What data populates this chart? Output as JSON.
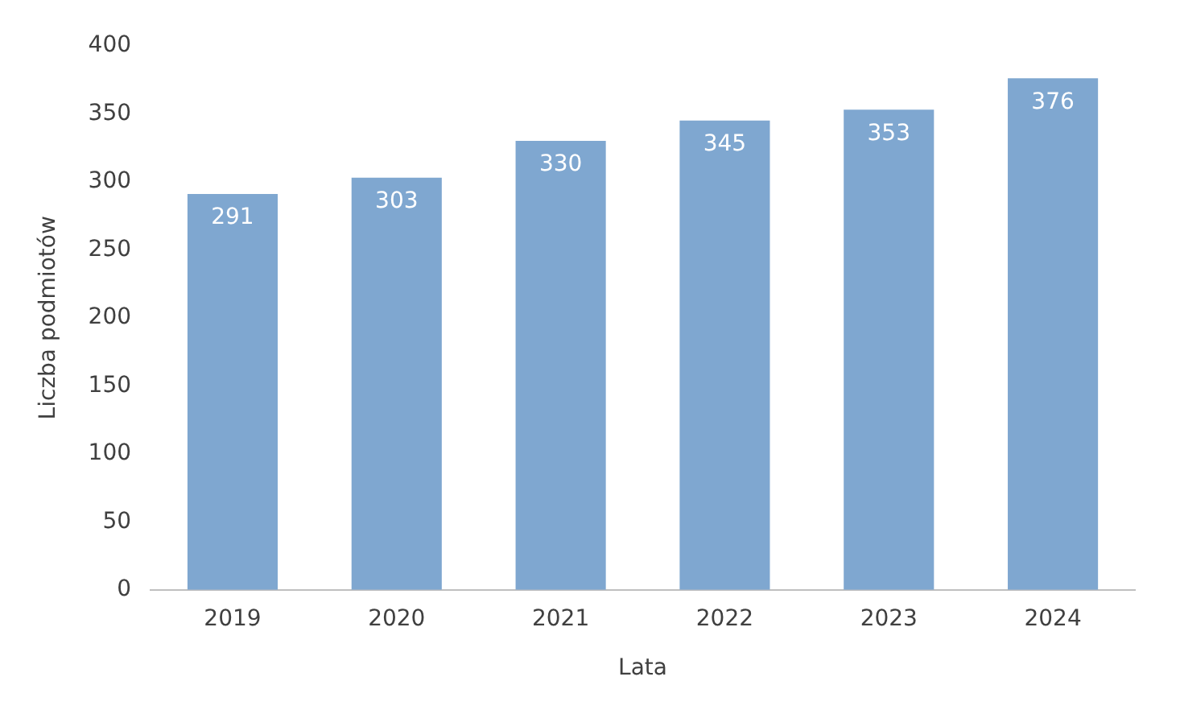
{
  "chart_data": {
    "type": "bar",
    "xlabel": "Lata",
    "ylabel": "Liczba podmiotów",
    "categories": [
      "2019",
      "2020",
      "2021",
      "2022",
      "2023",
      "2024"
    ],
    "values": [
      291,
      303,
      330,
      345,
      353,
      376
    ],
    "color": "#7fa7d0",
    "ylim": [
      0,
      400
    ],
    "yticks": [
      0,
      50,
      100,
      150,
      200,
      250,
      300,
      350,
      400
    ],
    "grid": false,
    "legend": false,
    "data_labels": true
  }
}
